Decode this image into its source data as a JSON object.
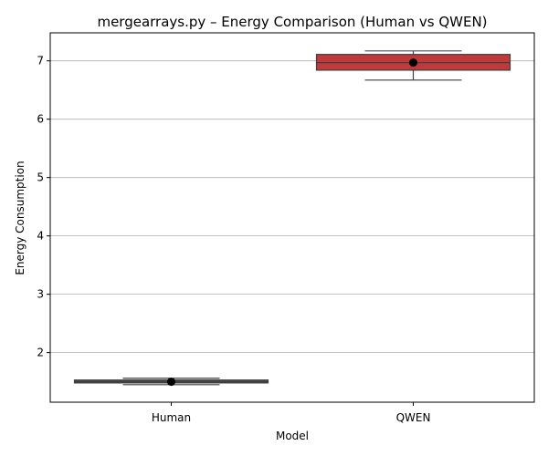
{
  "chart_data": {
    "type": "box",
    "title": "mergearrays.py – Energy Comparison (Human vs QWEN)",
    "xlabel": "Model",
    "ylabel": "Energy Consumption",
    "categories": [
      "Human",
      "QWEN"
    ],
    "ylim": [
      1.15,
      7.48
    ],
    "yticks": [
      2,
      3,
      4,
      5,
      6,
      7
    ],
    "grid": "y",
    "boxes": [
      {
        "category": "Human",
        "whisker_low": 1.45,
        "q1": 1.48,
        "median": 1.5,
        "q3": 1.53,
        "whisker_high": 1.56,
        "mean": 1.5,
        "color": "#4c4c4c"
      },
      {
        "category": "QWEN",
        "whisker_low": 6.67,
        "q1": 6.84,
        "median": 6.97,
        "q3": 7.11,
        "whisker_high": 7.17,
        "mean": 6.97,
        "color": "#c0393b"
      }
    ],
    "mean_marker_color": "#000000"
  }
}
